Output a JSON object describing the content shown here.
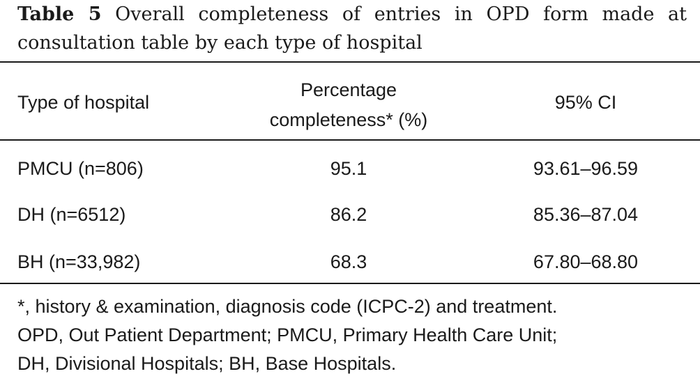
{
  "caption": {
    "label": "Table 5",
    "text": "Overall completeness of entries in OPD form made at consultation table by each type of hospital"
  },
  "table": {
    "headers": {
      "type": "Type of hospital",
      "percentage_line1": "Percentage",
      "percentage_line2": "completeness* (%)",
      "ci": "95% CI"
    },
    "rows": [
      {
        "type": "PMCU (n=806)",
        "percentage": "95.1",
        "ci": "93.61–96.59"
      },
      {
        "type": "DH (n=6512)",
        "percentage": "86.2",
        "ci": "85.36–87.04"
      },
      {
        "type": "BH (n=33,982)",
        "percentage": "68.3",
        "ci": "67.80–68.80"
      }
    ]
  },
  "footnote": {
    "line1": "*, history & examination, diagnosis code (ICPC-2) and treatment.",
    "line2": "OPD, Out Patient Department; PMCU, Primary Health Care Unit;",
    "line3": "DH, Divisional Hospitals; BH, Base Hospitals."
  }
}
